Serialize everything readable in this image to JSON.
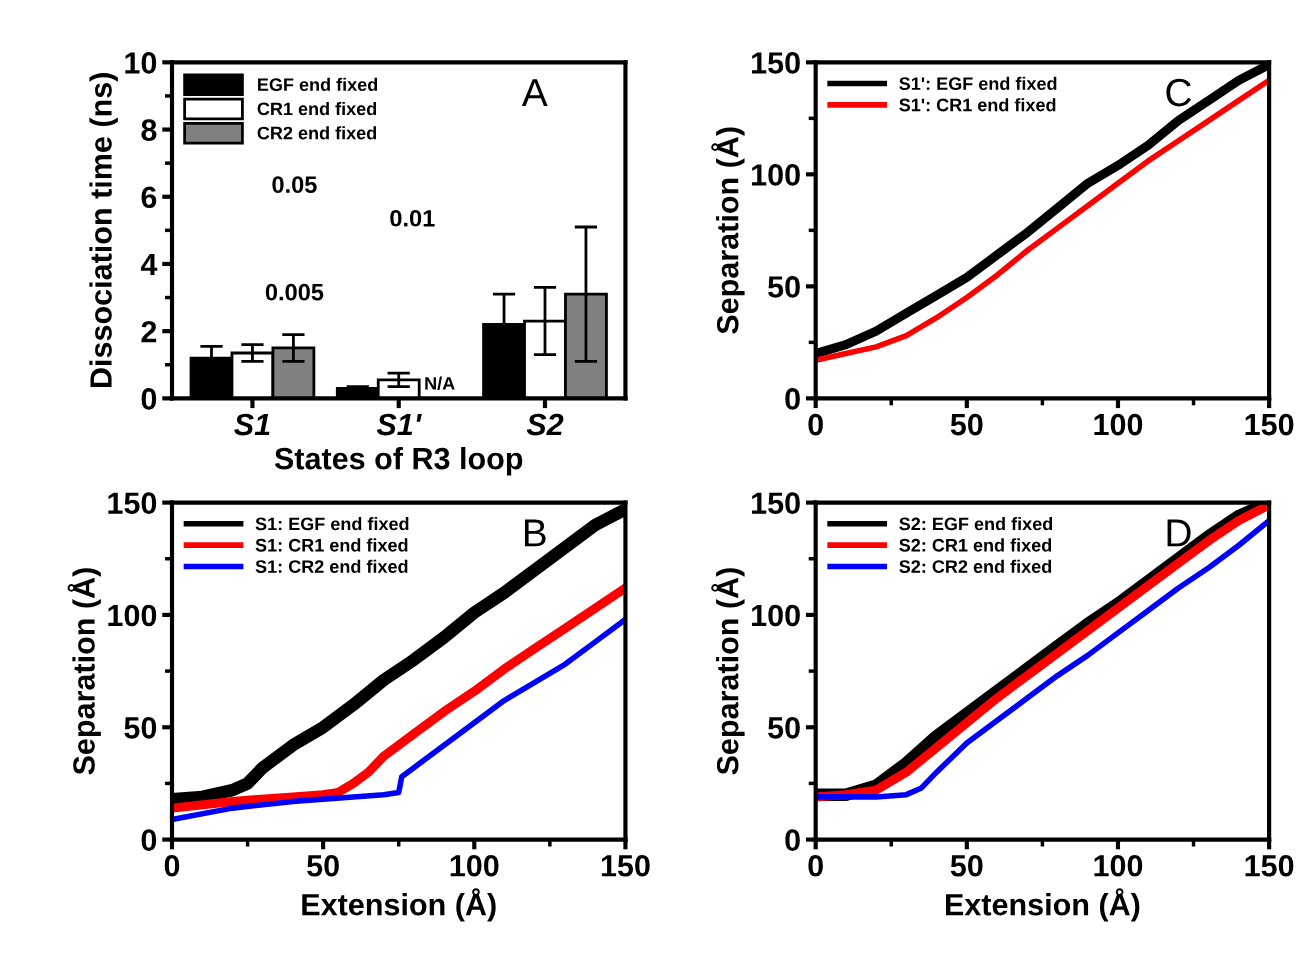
{
  "chart_data": [
    {
      "type": "bar",
      "categories": [
        "S1",
        "S1'",
        "S2"
      ],
      "xlabel": "States of R3 loop",
      "ylabel": "Dissociation time (ns)",
      "ylim": [
        0,
        10
      ],
      "yticks": [
        0,
        2,
        4,
        6,
        8,
        10
      ],
      "legend": "top left",
      "annotations": [
        "A",
        "0.05",
        "0.01",
        "0.005"
      ],
      "series": [
        {
          "name": "EGF end fixed",
          "color": "#000000",
          "values": [
            1.2,
            0.3,
            2.2
          ],
          "errors": [
            0.35,
            0.05,
            0.9
          ]
        },
        {
          "name": "CR1 end fixed",
          "color": "#ffffff",
          "values": [
            1.35,
            0.55,
            2.3
          ],
          "errors": [
            0.25,
            0.2,
            1.0
          ]
        },
        {
          "name": "CR2 end fixed",
          "color": "#808080",
          "values": [
            1.5,
            null,
            3.1
          ],
          "errors": [
            0.4,
            null,
            2.0
          ],
          "value_labels": [
            null,
            "N/A",
            null
          ]
        }
      ]
    },
    {
      "type": "line",
      "ylabel": "Separation (Å)",
      "xlim": [
        0,
        150
      ],
      "ylim": [
        0,
        150
      ],
      "xticks": [
        0,
        50,
        100,
        150
      ],
      "yticks": [
        0,
        50,
        100,
        150
      ],
      "legend": "top left",
      "annotations": [
        "C"
      ],
      "series": [
        {
          "name": "S1': EGF end fixed",
          "color": "#000000",
          "x": [
            0,
            10,
            20,
            30,
            40,
            50,
            60,
            70,
            80,
            90,
            100,
            110,
            120,
            130,
            140,
            150
          ],
          "values": [
            20,
            24,
            30,
            38,
            46,
            54,
            64,
            74,
            85,
            96,
            104,
            113,
            124,
            133,
            142,
            149
          ]
        },
        {
          "name": "S1': CR1 end fixed",
          "color": "#ff0000",
          "x": [
            0,
            10,
            20,
            30,
            40,
            50,
            60,
            70,
            80,
            90,
            100,
            110,
            120,
            130,
            140,
            150
          ],
          "values": [
            17,
            20,
            23,
            28,
            36,
            45,
            55,
            66,
            76,
            86,
            96,
            106,
            115,
            124,
            133,
            142
          ]
        }
      ]
    },
    {
      "type": "line",
      "xlabel": "Extension (Å)",
      "ylabel": "Separation (Å)",
      "xlim": [
        0,
        150
      ],
      "ylim": [
        0,
        150
      ],
      "xticks": [
        0,
        50,
        100,
        150
      ],
      "yticks": [
        0,
        50,
        100,
        150
      ],
      "legend": "top left",
      "annotations": [
        "B"
      ],
      "series": [
        {
          "name": "S1: EGF end fixed",
          "color": "#000000",
          "x": [
            0,
            10,
            20,
            25,
            30,
            40,
            50,
            60,
            70,
            80,
            90,
            100,
            110,
            120,
            130,
            140,
            150
          ],
          "values": [
            18,
            19,
            22,
            25,
            32,
            42,
            50,
            60,
            71,
            80,
            90,
            101,
            110,
            120,
            130,
            140,
            147
          ]
        },
        {
          "name": "S1: CR1 end fixed",
          "color": "#ff0000",
          "x": [
            0,
            20,
            40,
            50,
            55,
            60,
            65,
            70,
            80,
            90,
            100,
            110,
            120,
            130,
            140,
            150
          ],
          "values": [
            14,
            17,
            19,
            20,
            21,
            25,
            30,
            37,
            47,
            57,
            66,
            76,
            85,
            94,
            103,
            112
          ]
        },
        {
          "name": "S1: CR2 end fixed",
          "color": "#0000ff",
          "x": [
            0,
            20,
            40,
            60,
            70,
            75,
            76,
            80,
            90,
            100,
            110,
            120,
            130,
            140,
            150
          ],
          "values": [
            9,
            14,
            17,
            19,
            20,
            21,
            28,
            32,
            42,
            52,
            62,
            70,
            78,
            88,
            98
          ]
        }
      ]
    },
    {
      "type": "line",
      "xlabel": "Extension (Å)",
      "ylabel": "Separation (Å)",
      "xlim": [
        0,
        150
      ],
      "ylim": [
        0,
        150
      ],
      "xticks": [
        0,
        50,
        100,
        150
      ],
      "yticks": [
        0,
        50,
        100,
        150
      ],
      "legend": "top left",
      "annotations": [
        "D"
      ],
      "series": [
        {
          "name": "S2: EGF end fixed",
          "color": "#000000",
          "x": [
            0,
            10,
            20,
            30,
            40,
            50,
            60,
            70,
            80,
            90,
            100,
            110,
            120,
            130,
            140,
            150
          ],
          "values": [
            20,
            20,
            24,
            34,
            46,
            56,
            66,
            76,
            86,
            96,
            105,
            115,
            125,
            135,
            144,
            150
          ]
        },
        {
          "name": "S2: CR1 end fixed",
          "color": "#ff0000",
          "x": [
            0,
            10,
            20,
            30,
            40,
            50,
            60,
            70,
            80,
            90,
            100,
            110,
            120,
            130,
            140,
            150
          ],
          "values": [
            19,
            20,
            22,
            30,
            41,
            52,
            63,
            73,
            83,
            93,
            103,
            113,
            123,
            133,
            142,
            149
          ]
        },
        {
          "name": "S2: CR2 end fixed",
          "color": "#0000ff",
          "x": [
            0,
            10,
            20,
            30,
            35,
            40,
            50,
            60,
            70,
            80,
            90,
            100,
            110,
            120,
            130,
            140,
            150
          ],
          "values": [
            19,
            19,
            19,
            20,
            23,
            30,
            43,
            53,
            63,
            73,
            82,
            92,
            102,
            112,
            121,
            131,
            142
          ]
        }
      ]
    }
  ]
}
